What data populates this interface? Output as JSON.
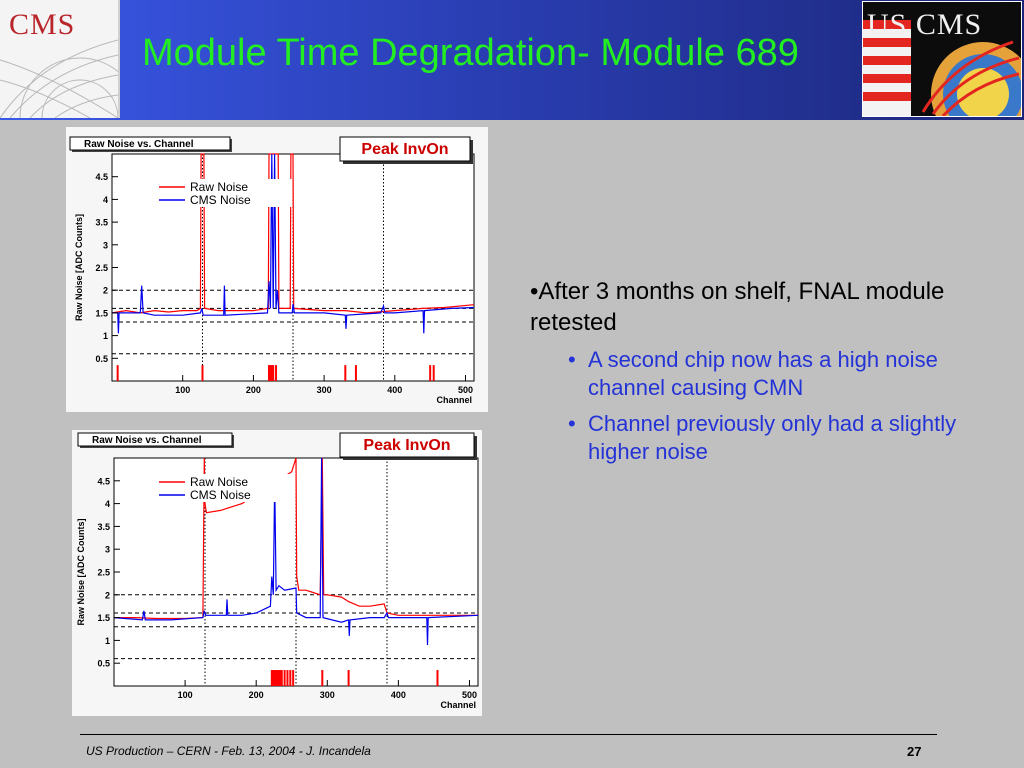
{
  "slide": {
    "title": "Module Time Degradation- Module 689",
    "logo_left": "CMS",
    "logo_right": "US CMS",
    "bullet_main": "•After 3 months on shelf, FNAL module retested",
    "sub_bullets": [
      "A second chip now has a high noise channel causing CMN",
      "Channel previously only had a slightly higher noise"
    ],
    "bullet_glyph": "•",
    "footer": "US Production – CERN -  Feb. 13, 2004 - J. Incandela",
    "page_number": "27"
  },
  "colors": {
    "title": "#22ee22",
    "sub_bullet": "#2433d6",
    "raw_noise": "#ff0000",
    "cms_noise": "#0000ee"
  },
  "chart_data": [
    {
      "type": "line",
      "title": "Raw Noise vs. Channel",
      "label": "Peak InvOn",
      "xlabel": "Channel",
      "ylabel": "Raw Noise [ADC Counts]",
      "xlim": [
        0,
        512
      ],
      "ylim": [
        0,
        5
      ],
      "x_ticks": [
        100,
        200,
        300,
        400,
        500
      ],
      "y_ticks": [
        0.5,
        1,
        1.5,
        2,
        2.5,
        3,
        3.5,
        4,
        4.5
      ],
      "vertical_dotted": [
        128,
        256,
        384
      ],
      "horizontal_dashed": [
        0.6,
        1.3,
        1.6,
        2.0
      ],
      "legend": [
        "Raw Noise",
        "CMS Noise"
      ],
      "series": [
        {
          "name": "Raw Noise",
          "color": "#ff0000",
          "points": [
            [
              0,
              1.5
            ],
            [
              20,
              1.55
            ],
            [
              40,
              1.5
            ],
            [
              60,
              1.55
            ],
            [
              80,
              1.52
            ],
            [
              100,
              1.55
            ],
            [
              120,
              1.55
            ],
            [
              125,
              1.6
            ],
            [
              126,
              5
            ],
            [
              130,
              5
            ],
            [
              131,
              1.6
            ],
            [
              150,
              1.55
            ],
            [
              200,
              1.55
            ],
            [
              221,
              1.6
            ],
            [
              222,
              5
            ],
            [
              235,
              5
            ],
            [
              236,
              1.6
            ],
            [
              252,
              1.6
            ],
            [
              253,
              5
            ],
            [
              256,
              5
            ],
            [
              257,
              1.6
            ],
            [
              300,
              1.55
            ],
            [
              330,
              1.55
            ],
            [
              360,
              1.5
            ],
            [
              400,
              1.55
            ],
            [
              440,
              1.6
            ],
            [
              470,
              1.62
            ],
            [
              512,
              1.68
            ]
          ],
          "spikes_at_zero": [
            [
              8,
              0.35
            ],
            [
              128,
              0.35
            ],
            [
              222,
              0.35
            ],
            [
              224,
              0.35
            ],
            [
              226,
              0.35
            ],
            [
              228,
              0.35
            ],
            [
              232,
              0.35
            ],
            [
              330,
              0.35
            ],
            [
              345,
              0.35
            ],
            [
              450,
              0.35
            ],
            [
              455,
              0.35
            ]
          ]
        },
        {
          "name": "CMS Noise",
          "color": "#0000ee",
          "points": [
            [
              0,
              1.5
            ],
            [
              8,
              1.5
            ],
            [
              9,
              1.05
            ],
            [
              10,
              1.5
            ],
            [
              40,
              1.5
            ],
            [
              42,
              2.1
            ],
            [
              44,
              1.5
            ],
            [
              60,
              1.45
            ],
            [
              100,
              1.45
            ],
            [
              125,
              1.5
            ],
            [
              127,
              1.6
            ],
            [
              129,
              1.45
            ],
            [
              150,
              1.45
            ],
            [
              158,
              1.45
            ],
            [
              159,
              2.1
            ],
            [
              160,
              1.45
            ],
            [
              220,
              1.5
            ],
            [
              222,
              2.2
            ],
            [
              224,
              1.6
            ],
            [
              226,
              5
            ],
            [
              228,
              1.6
            ],
            [
              230,
              5
            ],
            [
              232,
              1.6
            ],
            [
              234,
              2.0
            ],
            [
              236,
              1.5
            ],
            [
              255,
              1.5
            ],
            [
              256,
              1.7
            ],
            [
              258,
              1.5
            ],
            [
              300,
              1.5
            ],
            [
              330,
              1.45
            ],
            [
              331,
              1.15
            ],
            [
              332,
              1.45
            ],
            [
              380,
              1.5
            ],
            [
              384,
              1.65
            ],
            [
              386,
              1.5
            ],
            [
              400,
              1.5
            ],
            [
              440,
              1.55
            ],
            [
              441,
              1.05
            ],
            [
              442,
              1.55
            ],
            [
              480,
              1.6
            ],
            [
              512,
              1.62
            ]
          ]
        }
      ]
    },
    {
      "type": "line",
      "title": "Raw Noise vs. Channel",
      "label": "Peak InvOn",
      "xlabel": "Channel",
      "ylabel": "Raw Noise [ADC Counts]",
      "xlim": [
        0,
        512
      ],
      "ylim": [
        0,
        5
      ],
      "x_ticks": [
        100,
        200,
        300,
        400,
        500
      ],
      "y_ticks": [
        0.5,
        1,
        1.5,
        2,
        2.5,
        3,
        3.5,
        4,
        4.5
      ],
      "vertical_dotted": [
        128,
        256,
        384
      ],
      "horizontal_dashed": [
        0.6,
        1.3,
        1.6,
        2.0
      ],
      "legend": [
        "Raw Noise",
        "CMS Noise"
      ],
      "series": [
        {
          "name": "Raw Noise",
          "color": "#ff0000",
          "points": [
            [
              0,
              1.5
            ],
            [
              30,
              1.5
            ],
            [
              60,
              1.48
            ],
            [
              100,
              1.48
            ],
            [
              125,
              1.5
            ],
            [
              127,
              5
            ],
            [
              128,
              4.0
            ],
            [
              130,
              3.8
            ],
            [
              150,
              3.85
            ],
            [
              180,
              4.0
            ],
            [
              200,
              4.2
            ],
            [
              230,
              4.5
            ],
            [
              250,
              4.7
            ],
            [
              256,
              5
            ],
            [
              257,
              2.4
            ],
            [
              260,
              2.1
            ],
            [
              270,
              2.1
            ],
            [
              280,
              2.05
            ],
            [
              290,
              2.0
            ],
            [
              293,
              5
            ],
            [
              295,
              2.0
            ],
            [
              300,
              2.0
            ],
            [
              320,
              1.95
            ],
            [
              330,
              1.85
            ],
            [
              345,
              1.75
            ],
            [
              360,
              1.75
            ],
            [
              380,
              1.8
            ],
            [
              384,
              1.6
            ],
            [
              400,
              1.55
            ],
            [
              440,
              1.55
            ],
            [
              470,
              1.55
            ],
            [
              512,
              1.55
            ]
          ],
          "spikes_at_zero": [
            [
              222,
              0.35
            ],
            [
              224,
              0.35
            ],
            [
              226,
              0.35
            ],
            [
              228,
              0.35
            ],
            [
              230,
              0.35
            ],
            [
              232,
              0.35
            ],
            [
              234,
              0.35
            ],
            [
              236,
              0.35
            ],
            [
              240,
              0.35
            ],
            [
              244,
              0.35
            ],
            [
              248,
              0.35
            ],
            [
              252,
              0.35
            ],
            [
              293,
              0.35
            ],
            [
              330,
              0.35
            ],
            [
              455,
              0.35
            ]
          ]
        },
        {
          "name": "CMS Noise",
          "color": "#0000ee",
          "points": [
            [
              0,
              1.5
            ],
            [
              40,
              1.45
            ],
            [
              42,
              1.65
            ],
            [
              44,
              1.45
            ],
            [
              80,
              1.45
            ],
            [
              125,
              1.5
            ],
            [
              127,
              1.65
            ],
            [
              129,
              1.55
            ],
            [
              150,
              1.55
            ],
            [
              158,
              1.55
            ],
            [
              159,
              1.9
            ],
            [
              160,
              1.55
            ],
            [
              180,
              1.55
            ],
            [
              200,
              1.6
            ],
            [
              220,
              1.75
            ],
            [
              222,
              2.4
            ],
            [
              224,
              2.0
            ],
            [
              226,
              4.5
            ],
            [
              228,
              2.1
            ],
            [
              232,
              2.2
            ],
            [
              240,
              2.1
            ],
            [
              256,
              2.15
            ],
            [
              257,
              1.6
            ],
            [
              270,
              1.5
            ],
            [
              290,
              1.5
            ],
            [
              292,
              5
            ],
            [
              294,
              1.5
            ],
            [
              320,
              1.4
            ],
            [
              330,
              1.45
            ],
            [
              331,
              1.1
            ],
            [
              332,
              1.45
            ],
            [
              360,
              1.5
            ],
            [
              380,
              1.5
            ],
            [
              384,
              1.6
            ],
            [
              386,
              1.5
            ],
            [
              420,
              1.5
            ],
            [
              440,
              1.5
            ],
            [
              441,
              0.9
            ],
            [
              442,
              1.5
            ],
            [
              512,
              1.55
            ]
          ]
        }
      ]
    }
  ]
}
